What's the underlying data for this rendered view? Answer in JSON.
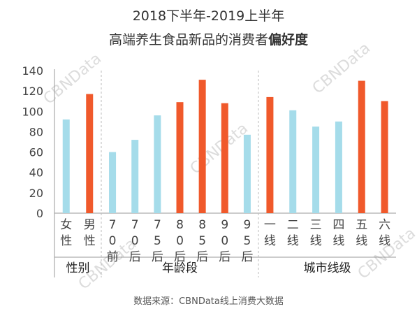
{
  "title_line1": "2018下半年-2019上半年",
  "title_line2_prefix": "高端养生食品新品的消费者",
  "title_line2_bold": "偏好度",
  "source": "数据来源：CBNData线上消费大数据",
  "watermark": "CBNData",
  "colors": {
    "blue": "#a5dcea",
    "orange": "#f0592b",
    "axis": "#999999",
    "grid_dash": "#bbbbbb",
    "text": "#444444"
  },
  "chart_data": {
    "type": "bar",
    "title": "2018下半年-2019上半年 高端养生食品新品的消费者偏好度",
    "ylim": [
      0,
      140
    ],
    "yticks": [
      0,
      20,
      40,
      60,
      80,
      100,
      120,
      140
    ],
    "grid": false,
    "groups": [
      {
        "name": "性别",
        "categories": [
          "女性",
          "男性"
        ],
        "values": [
          92,
          117
        ],
        "colors": [
          "blue",
          "orange"
        ]
      },
      {
        "name": "年龄段",
        "categories": [
          "70前",
          "70后",
          "75后",
          "80后",
          "85后",
          "90后",
          "95后"
        ],
        "values": [
          60,
          72,
          96,
          109,
          131,
          108,
          77
        ],
        "colors": [
          "blue",
          "blue",
          "blue",
          "orange",
          "orange",
          "orange",
          "blue"
        ]
      },
      {
        "name": "城市线级",
        "categories": [
          "一线",
          "二线",
          "三线",
          "四线",
          "五线",
          "六线"
        ],
        "values": [
          114,
          101,
          85,
          90,
          130,
          110
        ],
        "colors": [
          "orange",
          "blue",
          "blue",
          "blue",
          "orange",
          "orange"
        ]
      }
    ]
  }
}
